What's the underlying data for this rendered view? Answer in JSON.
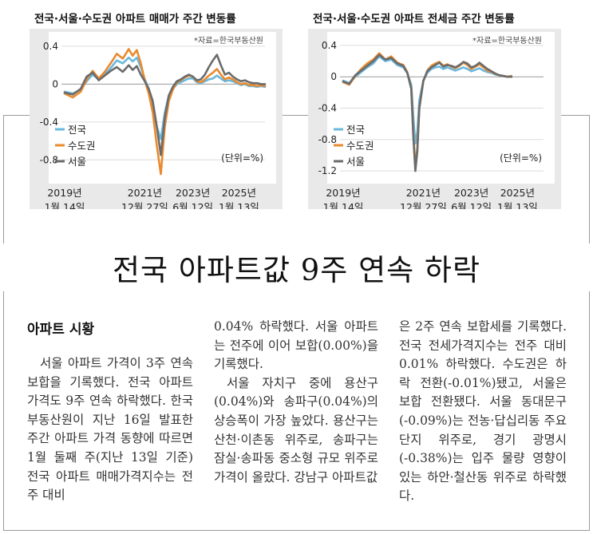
{
  "chart_data": [
    {
      "type": "line",
      "title": "전국·서울·수도권 아파트 매매가 주간 변동률",
      "source": "*자료=한국부동산원",
      "unit": "(단위=%)",
      "y_ticks": [
        "0.4",
        "0",
        "-0.4",
        "-0.8"
      ],
      "ylim": [
        -1.0,
        0.45
      ],
      "x_labels": [
        {
          "year": "2019년",
          "day": "1월 14일",
          "t": 0
        },
        {
          "year": "2021년",
          "day": "12월 27일",
          "t": 0.4
        },
        {
          "year": "2023년",
          "day": "6월 12일",
          "t": 0.64
        },
        {
          "year": "2025년",
          "day": "1월 13일",
          "t": 0.87
        }
      ],
      "series": [
        {
          "name": "전국",
          "color": "#6ab8de",
          "points": [
            [
              0,
              -0.08
            ],
            [
              0.04,
              -0.1
            ],
            [
              0.08,
              -0.06
            ],
            [
              0.11,
              0.03
            ],
            [
              0.14,
              0.1
            ],
            [
              0.17,
              0.05
            ],
            [
              0.2,
              0.1
            ],
            [
              0.23,
              0.17
            ],
            [
              0.26,
              0.25
            ],
            [
              0.29,
              0.22
            ],
            [
              0.32,
              0.28
            ],
            [
              0.34,
              0.24
            ],
            [
              0.36,
              0.28
            ],
            [
              0.38,
              0.18
            ],
            [
              0.4,
              0.05
            ],
            [
              0.42,
              -0.05
            ],
            [
              0.44,
              -0.2
            ],
            [
              0.46,
              -0.45
            ],
            [
              0.48,
              -0.58
            ],
            [
              0.5,
              -0.3
            ],
            [
              0.52,
              -0.12
            ],
            [
              0.54,
              -0.05
            ],
            [
              0.56,
              0.0
            ],
            [
              0.58,
              0.02
            ],
            [
              0.6,
              0.04
            ],
            [
              0.62,
              0.06
            ],
            [
              0.64,
              0.06
            ],
            [
              0.66,
              0.02
            ],
            [
              0.68,
              0.01
            ],
            [
              0.7,
              0.03
            ],
            [
              0.72,
              0.05
            ],
            [
              0.74,
              0.06
            ],
            [
              0.76,
              0.09
            ],
            [
              0.78,
              0.06
            ],
            [
              0.8,
              0.03
            ],
            [
              0.82,
              0.04
            ],
            [
              0.84,
              0.03
            ],
            [
              0.86,
              0.01
            ],
            [
              0.88,
              -0.01
            ],
            [
              0.9,
              0.0
            ],
            [
              0.92,
              -0.02
            ],
            [
              0.94,
              -0.02
            ],
            [
              0.96,
              -0.03
            ],
            [
              0.98,
              -0.02
            ],
            [
              1,
              -0.03
            ]
          ]
        },
        {
          "name": "수도권",
          "color": "#e98a2e",
          "points": [
            [
              0,
              -0.1
            ],
            [
              0.04,
              -0.14
            ],
            [
              0.08,
              -0.08
            ],
            [
              0.11,
              0.05
            ],
            [
              0.14,
              0.14
            ],
            [
              0.17,
              0.06
            ],
            [
              0.2,
              0.13
            ],
            [
              0.23,
              0.22
            ],
            [
              0.26,
              0.32
            ],
            [
              0.29,
              0.27
            ],
            [
              0.32,
              0.37
            ],
            [
              0.34,
              0.3
            ],
            [
              0.36,
              0.36
            ],
            [
              0.38,
              0.22
            ],
            [
              0.4,
              0.04
            ],
            [
              0.42,
              -0.1
            ],
            [
              0.44,
              -0.3
            ],
            [
              0.46,
              -0.65
            ],
            [
              0.48,
              -0.95
            ],
            [
              0.5,
              -0.45
            ],
            [
              0.52,
              -0.18
            ],
            [
              0.54,
              -0.06
            ],
            [
              0.56,
              0.02
            ],
            [
              0.58,
              0.04
            ],
            [
              0.6,
              0.07
            ],
            [
              0.62,
              0.09
            ],
            [
              0.64,
              0.08
            ],
            [
              0.66,
              0.03
            ],
            [
              0.68,
              0.02
            ],
            [
              0.7,
              0.05
            ],
            [
              0.72,
              0.09
            ],
            [
              0.74,
              0.12
            ],
            [
              0.76,
              0.16
            ],
            [
              0.78,
              0.1
            ],
            [
              0.8,
              0.05
            ],
            [
              0.82,
              0.07
            ],
            [
              0.84,
              0.05
            ],
            [
              0.86,
              0.02
            ],
            [
              0.88,
              0.0
            ],
            [
              0.9,
              0.01
            ],
            [
              0.92,
              -0.01
            ],
            [
              0.94,
              -0.01
            ],
            [
              0.96,
              -0.02
            ],
            [
              0.98,
              -0.01
            ],
            [
              1,
              -0.02
            ]
          ]
        },
        {
          "name": "서울",
          "color": "#6b6b6b",
          "points": [
            [
              0,
              -0.09
            ],
            [
              0.04,
              -0.11
            ],
            [
              0.08,
              -0.05
            ],
            [
              0.11,
              0.08
            ],
            [
              0.14,
              0.12
            ],
            [
              0.17,
              0.04
            ],
            [
              0.2,
              0.09
            ],
            [
              0.23,
              0.14
            ],
            [
              0.26,
              0.18
            ],
            [
              0.29,
              0.13
            ],
            [
              0.32,
              0.2
            ],
            [
              0.34,
              0.15
            ],
            [
              0.36,
              0.19
            ],
            [
              0.38,
              0.1
            ],
            [
              0.4,
              0.03
            ],
            [
              0.42,
              -0.05
            ],
            [
              0.44,
              -0.18
            ],
            [
              0.46,
              -0.45
            ],
            [
              0.48,
              -0.75
            ],
            [
              0.5,
              -0.35
            ],
            [
              0.52,
              -0.12
            ],
            [
              0.54,
              -0.03
            ],
            [
              0.56,
              0.03
            ],
            [
              0.58,
              0.05
            ],
            [
              0.6,
              0.08
            ],
            [
              0.62,
              0.1
            ],
            [
              0.64,
              0.08
            ],
            [
              0.66,
              0.04
            ],
            [
              0.68,
              0.05
            ],
            [
              0.7,
              0.1
            ],
            [
              0.72,
              0.18
            ],
            [
              0.74,
              0.25
            ],
            [
              0.76,
              0.31
            ],
            [
              0.78,
              0.2
            ],
            [
              0.8,
              0.1
            ],
            [
              0.82,
              0.12
            ],
            [
              0.84,
              0.08
            ],
            [
              0.86,
              0.05
            ],
            [
              0.88,
              0.03
            ],
            [
              0.9,
              0.04
            ],
            [
              0.92,
              0.02
            ],
            [
              0.94,
              0.01
            ],
            [
              0.96,
              0.01
            ],
            [
              0.98,
              0.0
            ],
            [
              1,
              0.0
            ]
          ]
        }
      ]
    },
    {
      "type": "line",
      "title": "전국·서울·수도권 아파트 전세금 주간 변동률",
      "source": "*자료=한국부동산원",
      "unit": "(단위=%)",
      "y_ticks": [
        "0.4",
        "0",
        "-0.4",
        "-0.8",
        "-1.2"
      ],
      "ylim": [
        -1.3,
        0.45
      ],
      "x_labels": [
        {
          "year": "2019년",
          "day": "1월 14일",
          "t": 0
        },
        {
          "year": "2021년",
          "day": "12월 27일",
          "t": 0.4
        },
        {
          "year": "2023년",
          "day": "6월 12일",
          "t": 0.64
        },
        {
          "year": "2025년",
          "day": "1월 13일",
          "t": 0.87
        }
      ],
      "series": [
        {
          "name": "전국",
          "color": "#6ab8de",
          "points": [
            [
              0,
              -0.05
            ],
            [
              0.03,
              -0.08
            ],
            [
              0.06,
              0.0
            ],
            [
              0.09,
              0.06
            ],
            [
              0.12,
              0.12
            ],
            [
              0.15,
              0.17
            ],
            [
              0.18,
              0.26
            ],
            [
              0.21,
              0.2
            ],
            [
              0.24,
              0.22
            ],
            [
              0.27,
              0.15
            ],
            [
              0.3,
              0.12
            ],
            [
              0.32,
              0.05
            ],
            [
              0.34,
              -0.1
            ],
            [
              0.35,
              -0.5
            ],
            [
              0.36,
              -0.85
            ],
            [
              0.37,
              -0.7
            ],
            [
              0.38,
              -0.3
            ],
            [
              0.4,
              -0.05
            ],
            [
              0.42,
              0.05
            ],
            [
              0.44,
              0.1
            ],
            [
              0.46,
              0.12
            ],
            [
              0.48,
              0.13
            ],
            [
              0.5,
              0.1
            ],
            [
              0.52,
              0.12
            ],
            [
              0.54,
              0.1
            ],
            [
              0.56,
              0.08
            ],
            [
              0.58,
              0.1
            ],
            [
              0.6,
              0.12
            ],
            [
              0.62,
              0.1
            ],
            [
              0.64,
              0.07
            ],
            [
              0.66,
              0.09
            ],
            [
              0.68,
              0.11
            ],
            [
              0.7,
              0.08
            ],
            [
              0.72,
              0.06
            ],
            [
              0.74,
              0.05
            ],
            [
              0.76,
              0.03
            ],
            [
              0.78,
              0.02
            ],
            [
              0.8,
              0.01
            ],
            [
              0.82,
              0.0
            ],
            [
              0.84,
              0.01
            ]
          ]
        },
        {
          "name": "수도권",
          "color": "#e98a2e",
          "points": [
            [
              0,
              -0.07
            ],
            [
              0.03,
              -0.1
            ],
            [
              0.06,
              0.01
            ],
            [
              0.09,
              0.1
            ],
            [
              0.12,
              0.17
            ],
            [
              0.15,
              0.22
            ],
            [
              0.18,
              0.3
            ],
            [
              0.21,
              0.22
            ],
            [
              0.24,
              0.26
            ],
            [
              0.27,
              0.18
            ],
            [
              0.3,
              0.15
            ],
            [
              0.32,
              0.06
            ],
            [
              0.34,
              -0.15
            ],
            [
              0.35,
              -0.7
            ],
            [
              0.36,
              -1.15
            ],
            [
              0.37,
              -0.9
            ],
            [
              0.38,
              -0.4
            ],
            [
              0.4,
              -0.06
            ],
            [
              0.42,
              0.08
            ],
            [
              0.44,
              0.14
            ],
            [
              0.46,
              0.17
            ],
            [
              0.48,
              0.19
            ],
            [
              0.5,
              0.14
            ],
            [
              0.52,
              0.16
            ],
            [
              0.54,
              0.13
            ],
            [
              0.56,
              0.11
            ],
            [
              0.58,
              0.14
            ],
            [
              0.6,
              0.18
            ],
            [
              0.62,
              0.15
            ],
            [
              0.64,
              0.1
            ],
            [
              0.66,
              0.13
            ],
            [
              0.68,
              0.16
            ],
            [
              0.7,
              0.12
            ],
            [
              0.72,
              0.08
            ],
            [
              0.74,
              0.06
            ],
            [
              0.76,
              0.04
            ],
            [
              0.78,
              0.02
            ],
            [
              0.8,
              0.01
            ],
            [
              0.82,
              0.0
            ],
            [
              0.84,
              0.01
            ]
          ]
        },
        {
          "name": "서울",
          "color": "#6b6b6b",
          "points": [
            [
              0,
              -0.06
            ],
            [
              0.03,
              -0.09
            ],
            [
              0.06,
              0.02
            ],
            [
              0.09,
              0.08
            ],
            [
              0.12,
              0.14
            ],
            [
              0.15,
              0.2
            ],
            [
              0.18,
              0.28
            ],
            [
              0.21,
              0.22
            ],
            [
              0.24,
              0.24
            ],
            [
              0.27,
              0.17
            ],
            [
              0.3,
              0.14
            ],
            [
              0.32,
              0.05
            ],
            [
              0.34,
              -0.15
            ],
            [
              0.35,
              -0.75
            ],
            [
              0.36,
              -1.2
            ],
            [
              0.37,
              -0.95
            ],
            [
              0.38,
              -0.4
            ],
            [
              0.4,
              -0.05
            ],
            [
              0.42,
              0.07
            ],
            [
              0.44,
              0.12
            ],
            [
              0.46,
              0.15
            ],
            [
              0.48,
              0.18
            ],
            [
              0.5,
              0.13
            ],
            [
              0.52,
              0.15
            ],
            [
              0.54,
              0.14
            ],
            [
              0.56,
              0.12
            ],
            [
              0.58,
              0.15
            ],
            [
              0.6,
              0.19
            ],
            [
              0.62,
              0.17
            ],
            [
              0.64,
              0.12
            ],
            [
              0.66,
              0.14
            ],
            [
              0.68,
              0.18
            ],
            [
              0.7,
              0.14
            ],
            [
              0.72,
              0.1
            ],
            [
              0.74,
              0.07
            ],
            [
              0.76,
              0.04
            ],
            [
              0.78,
              0.02
            ],
            [
              0.8,
              0.01
            ],
            [
              0.82,
              0.0
            ],
            [
              0.84,
              0.0
            ]
          ]
        }
      ]
    }
  ],
  "article": {
    "headline": "전국 아파트값 9주 연속 하락",
    "section": "아파트 시황",
    "col1": "서울 아파트 가격이 3주 연속 보합을 기록했다. 전국 아파트 가격도 9주 연속 하락했다. 한국부동산원이 지난 16일 발표한 주간 아파트 가격 동향에 따르면 1월 둘째 주(지난 13일 기준) 전국 아파트 매매가격지수는 전주 대비",
    "col2_p1": "0.04% 하락했다. 서울 아파트는 전주에 이어 보합(0.00%)을 기록했다.",
    "col2_p2": "서울 자치구 중에 용산구(0.04%)와 송파구(0.04%)의 상승폭이 가장 높았다. 용산구는 산천·이촌동 위주로, 송파구는 잠실·송파동 중소형 규모 위주로 가격이 올랐다. 강남구 아파트값",
    "col3": "은 2주 연속 보합세를 기록했다. 전국 전세가격지수는 전주 대비 0.01% 하락했다. 수도권은 하락 전환(-0.01%)됐고, 서울은 보합 전환됐다. 서울 동대문구(-0.09%)는 전농·답십리동 주요 단지 위주로, 경기 광명시(-0.38%)는 입주 물량 영향이 있는 하안·철산동 위주로 하락했다."
  }
}
